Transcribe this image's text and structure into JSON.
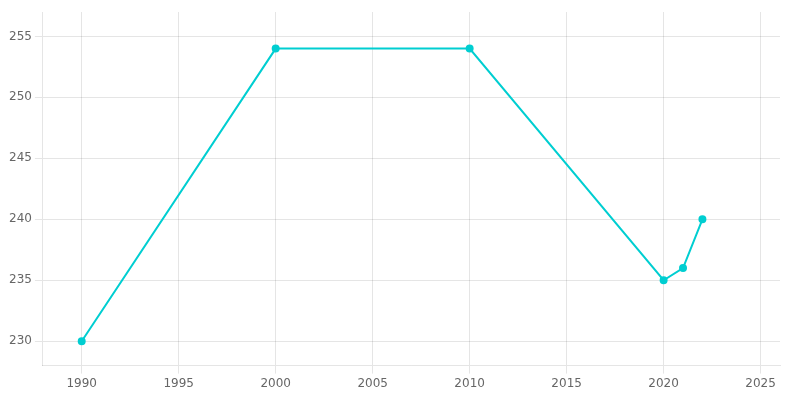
{
  "chart_data": {
    "type": "line",
    "x": [
      1990,
      2000,
      2010,
      2020,
      2021,
      2022
    ],
    "values": [
      230,
      254,
      254,
      235,
      236,
      240
    ],
    "color": "#00CED1",
    "marker": "circle",
    "xlim": [
      1988,
      2026
    ],
    "ylim": [
      228,
      257
    ],
    "xticks": [
      1990,
      1995,
      2000,
      2005,
      2010,
      2015,
      2020,
      2025
    ],
    "yticks": [
      230,
      235,
      240,
      245,
      250,
      255
    ],
    "grid": true
  }
}
